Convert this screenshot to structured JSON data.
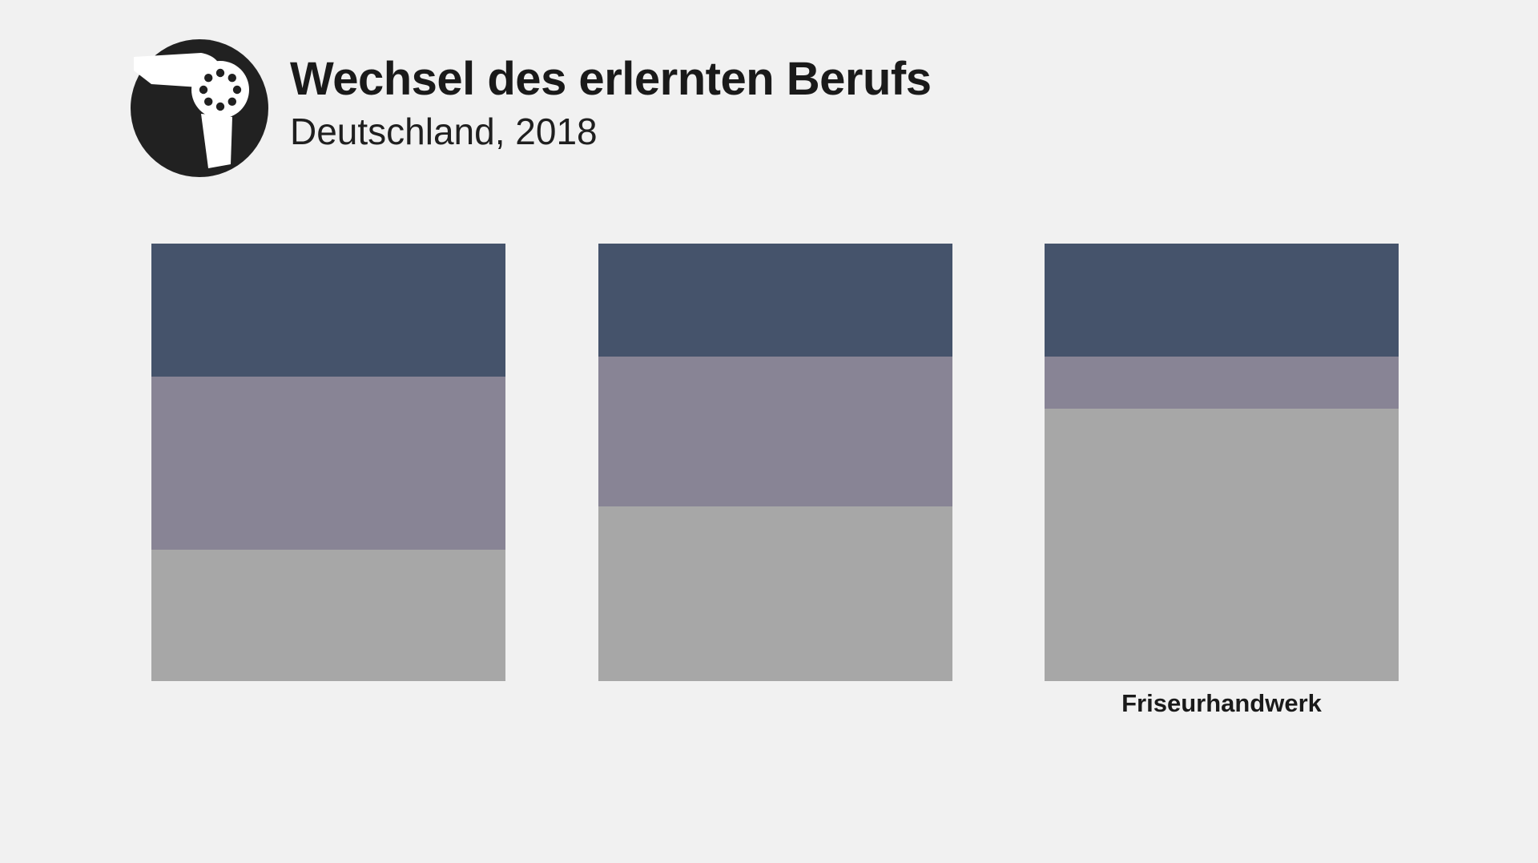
{
  "header": {
    "title": "Wechsel des erlernten Berufs",
    "subtitle": "Deutschland, 2018",
    "logo_icon": "hairdryer-icon"
  },
  "colors": {
    "background": "#f1f1f1",
    "text": "#1a1a1a",
    "logo_background": "#212121",
    "logo_glyph": "#ffffff",
    "segment_top": "#45536b",
    "segment_middle": "#888495",
    "segment_bottom": "#a7a7a7"
  },
  "chart_data": {
    "type": "bar",
    "stacked": true,
    "orientation": "vertical",
    "title": "Wechsel des erlernten Berufs",
    "subtitle": "Deutschland, 2018",
    "legend": "none",
    "axes": "none",
    "value_labels": false,
    "unit": "% of bar height (estimated from pixels, no labels shown)",
    "categories": [
      "",
      "",
      "Friseurhandwerk"
    ],
    "series": [
      {
        "name": "top-segment",
        "color": "#45536b",
        "values": [
          30.4,
          25.8,
          25.8
        ]
      },
      {
        "name": "middle-segment",
        "color": "#888495",
        "values": [
          39.6,
          34.2,
          11.9
        ]
      },
      {
        "name": "bottom-segment",
        "color": "#a7a7a7",
        "values": [
          30.0,
          40.0,
          62.3
        ]
      }
    ]
  }
}
